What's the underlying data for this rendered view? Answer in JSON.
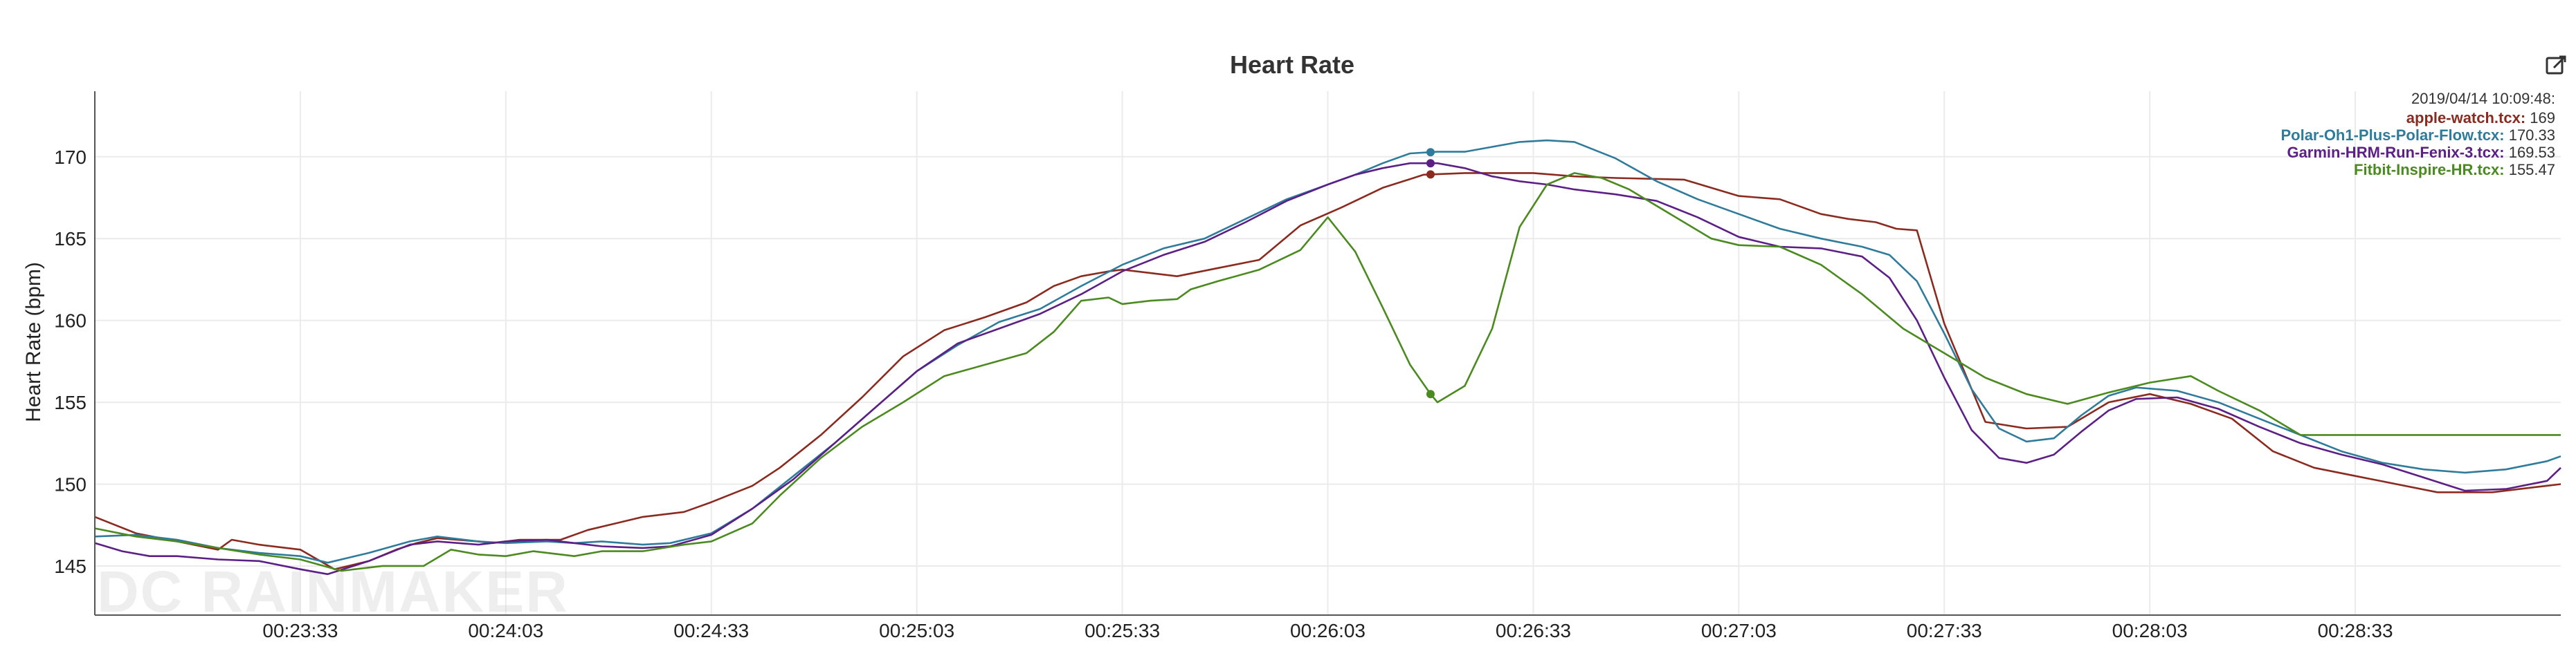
{
  "chart_data": {
    "type": "line",
    "title": "Heart Rate",
    "xlabel": "",
    "ylabel": "Heart Rate (bpm)",
    "ylim": [
      142,
      174
    ],
    "xlim": [
      0,
      360
    ],
    "yticks": [
      145,
      150,
      155,
      160,
      165,
      170
    ],
    "xticks": [
      {
        "t": 30,
        "label": "00:23:33"
      },
      {
        "t": 60,
        "label": "00:24:03"
      },
      {
        "t": 90,
        "label": "00:24:33"
      },
      {
        "t": 120,
        "label": "00:25:03"
      },
      {
        "t": 150,
        "label": "00:25:33"
      },
      {
        "t": 180,
        "label": "00:26:03"
      },
      {
        "t": 210,
        "label": "00:26:33"
      },
      {
        "t": 240,
        "label": "00:27:03"
      },
      {
        "t": 270,
        "label": "00:27:33"
      },
      {
        "t": 300,
        "label": "00:28:03"
      },
      {
        "t": 330,
        "label": "00:28:33"
      }
    ],
    "x_units": "seconds since 00:23:03",
    "grid": true,
    "cursor_t": 195,
    "watermark": "DC RAINMAKER",
    "tooltip": {
      "timestamp": "2019/04/14 10:09:48:",
      "entries": [
        {
          "name": "apple-watch.tcx:",
          "value": "169"
        },
        {
          "name": "Polar-Oh1-Plus-Polar-Flow.tcx:",
          "value": "170.33"
        },
        {
          "name": "Garmin-HRM-Run-Fenix-3.tcx:",
          "value": "169.53"
        },
        {
          "name": "Fitbit-Inspire-HR.tcx:",
          "value": "155.47"
        }
      ]
    },
    "series": [
      {
        "name": "apple-watch.tcx",
        "color": "#8b2a1e",
        "x": [
          0,
          6,
          12,
          18,
          20,
          24,
          30,
          35,
          40,
          44,
          47,
          50,
          56,
          58,
          62,
          66,
          68,
          72,
          76,
          80,
          86,
          90,
          96,
          100,
          106,
          112,
          118,
          124,
          130,
          136,
          140,
          144,
          148,
          150,
          154,
          158,
          164,
          170,
          176,
          182,
          188,
          194,
          200,
          210,
          216,
          222,
          232,
          240,
          246,
          252,
          256,
          260,
          263,
          266,
          270,
          276,
          282,
          288,
          294,
          300,
          306,
          312,
          318,
          324,
          330,
          336,
          342,
          350,
          356,
          360
        ],
        "values": [
          148,
          147,
          146.5,
          146,
          146.6,
          146.3,
          146,
          144.8,
          145.3,
          146,
          146.4,
          146.7,
          146.5,
          146.4,
          146.6,
          146.6,
          146.6,
          147.2,
          147.6,
          148,
          148.3,
          148.9,
          149.9,
          151,
          153,
          155.3,
          157.8,
          159.4,
          160.2,
          161.1,
          162.1,
          162.7,
          163,
          163.1,
          162.9,
          162.7,
          163.2,
          163.7,
          165.8,
          166.9,
          168.1,
          168.9,
          169,
          169,
          168.8,
          168.7,
          168.6,
          167.6,
          167.4,
          166.5,
          166.2,
          166,
          165.6,
          165.5,
          159.8,
          153.8,
          153.4,
          153.5,
          155,
          155.5,
          154.9,
          154,
          152,
          151,
          150.5,
          150,
          149.5,
          149.5,
          149.8,
          150
        ]
      },
      {
        "name": "Polar-Oh1-Plus-Polar-Flow.tcx",
        "color": "#2f7b9b",
        "x": [
          0,
          6,
          12,
          18,
          24,
          30,
          34,
          40,
          46,
          50,
          56,
          60,
          66,
          70,
          74,
          80,
          84,
          90,
          96,
          102,
          108,
          114,
          120,
          126,
          132,
          138,
          144,
          150,
          156,
          162,
          168,
          174,
          180,
          184,
          188,
          192,
          196,
          200,
          204,
          208,
          212,
          216,
          222,
          228,
          234,
          240,
          246,
          252,
          258,
          262,
          266,
          270,
          274,
          278,
          282,
          286,
          290,
          294,
          298,
          304,
          310,
          316,
          322,
          328,
          334,
          340,
          346,
          352,
          358,
          360
        ],
        "values": [
          146.8,
          146.9,
          146.6,
          146.1,
          145.8,
          145.6,
          145.2,
          145.8,
          146.5,
          146.8,
          146.5,
          146.4,
          146.5,
          146.4,
          146.5,
          146.3,
          146.4,
          147,
          148.5,
          150.5,
          152.5,
          154.7,
          156.9,
          158.5,
          159.9,
          160.7,
          162.1,
          163.4,
          164.4,
          165,
          166.2,
          167.4,
          168.3,
          168.9,
          169.6,
          170.2,
          170.3,
          170.3,
          170.6,
          170.9,
          171,
          170.9,
          169.9,
          168.5,
          167.4,
          166.5,
          165.6,
          165,
          164.5,
          164,
          162.4,
          159.2,
          155.8,
          153.4,
          152.6,
          152.8,
          154.2,
          155.4,
          155.9,
          155.7,
          155,
          154,
          153,
          152,
          151.3,
          150.9,
          150.7,
          150.9,
          151.4,
          151.7
        ]
      },
      {
        "name": "Garmin-HRM-Run-Fenix-3.tcx",
        "color": "#5c1f86",
        "x": [
          0,
          4,
          8,
          12,
          18,
          24,
          30,
          34,
          40,
          46,
          50,
          56,
          60,
          66,
          70,
          74,
          80,
          84,
          90,
          96,
          102,
          108,
          114,
          120,
          126,
          132,
          138,
          144,
          150,
          156,
          162,
          168,
          174,
          180,
          184,
          188,
          192,
          196,
          200,
          204,
          208,
          212,
          216,
          222,
          228,
          234,
          240,
          246,
          252,
          258,
          262,
          266,
          270,
          274,
          278,
          282,
          286,
          290,
          294,
          298,
          304,
          310,
          316,
          322,
          328,
          334,
          340,
          346,
          352,
          358,
          360
        ],
        "values": [
          146.4,
          145.9,
          145.6,
          145.6,
          145.4,
          145.3,
          144.8,
          144.5,
          145.3,
          146.3,
          146.5,
          146.3,
          146.5,
          146.6,
          146.4,
          146.2,
          146.1,
          146.2,
          146.9,
          148.5,
          150.3,
          152.5,
          154.7,
          156.9,
          158.6,
          159.5,
          160.4,
          161.6,
          163,
          164,
          164.8,
          166,
          167.3,
          168.3,
          168.9,
          169.3,
          169.6,
          169.6,
          169.3,
          168.8,
          168.5,
          168.3,
          168,
          167.7,
          167.3,
          166.3,
          165.1,
          164.5,
          164.4,
          163.9,
          162.6,
          160,
          156.5,
          153.3,
          151.6,
          151.3,
          151.8,
          153.2,
          154.5,
          155.2,
          155.3,
          154.6,
          153.5,
          152.5,
          151.8,
          151.2,
          150.4,
          149.6,
          149.7,
          150.2,
          151
        ]
      },
      {
        "name": "Fitbit-Inspire-HR.tcx",
        "color": "#4a8a1e",
        "x": [
          0,
          6,
          12,
          18,
          24,
          30,
          36,
          42,
          48,
          52,
          56,
          60,
          64,
          70,
          74,
          80,
          86,
          90,
          96,
          100,
          106,
          112,
          118,
          124,
          130,
          136,
          140,
          144,
          148,
          150,
          154,
          158,
          160,
          164,
          170,
          176,
          180,
          184,
          188,
          192,
          195,
          196,
          200,
          204,
          208,
          212,
          216,
          220,
          224,
          230,
          236,
          240,
          246,
          252,
          258,
          264,
          270,
          276,
          282,
          288,
          294,
          300,
          306,
          310,
          316,
          322,
          328,
          334,
          340,
          346,
          352,
          360
        ],
        "values": [
          147.3,
          146.8,
          146.5,
          146.1,
          145.7,
          145.4,
          144.7,
          145,
          145,
          146,
          145.7,
          145.6,
          145.9,
          145.6,
          145.9,
          145.9,
          146.3,
          146.5,
          147.6,
          149.3,
          151.6,
          153.5,
          155,
          156.6,
          157.3,
          158,
          159.3,
          161.2,
          161.4,
          161,
          161.2,
          161.3,
          161.9,
          162.4,
          163.1,
          164.3,
          166.3,
          164.2,
          160.8,
          157.3,
          155.5,
          155,
          156,
          159.5,
          165.7,
          168.3,
          169,
          168.7,
          168,
          166.5,
          165,
          164.6,
          164.5,
          163.4,
          161.6,
          159.5,
          158,
          156.5,
          155.5,
          154.9,
          155.6,
          156.2,
          156.6,
          155.7,
          154.5,
          153,
          153,
          153,
          153,
          153,
          153,
          153
        ]
      }
    ]
  }
}
